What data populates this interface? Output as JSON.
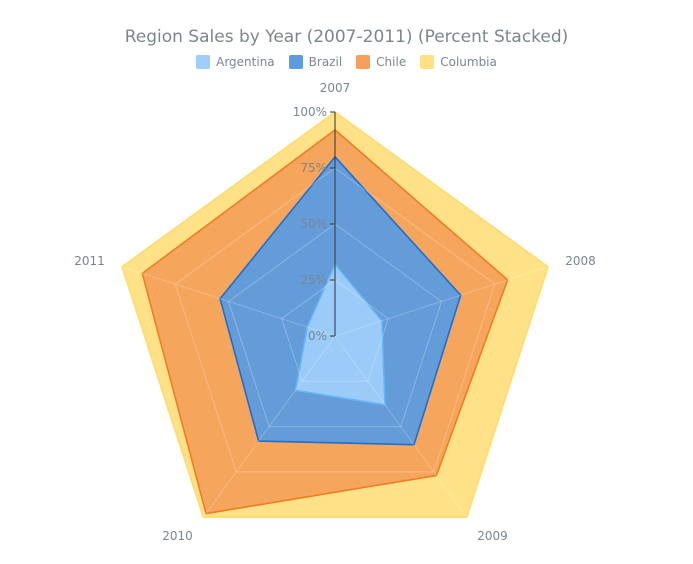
{
  "chart_data": {
    "type": "radar",
    "title": "Region Sales by Year (2007-2011) (Percent Stacked)",
    "stacked": "percent",
    "categories": [
      "2007",
      "2008",
      "2009",
      "2010",
      "2011"
    ],
    "radial_ticks": [
      "0%",
      "25%",
      "50%",
      "75%",
      "100%"
    ],
    "ylim": [
      0,
      100
    ],
    "legend_position": "top-center",
    "series": [
      {
        "name": "Argentina",
        "values": [
          32,
          22,
          38,
          30,
          15
        ],
        "color": "#9ecefa",
        "stroke": "#64b5f6"
      },
      {
        "name": "Brazil",
        "values": [
          48,
          37,
          22,
          28,
          47
        ],
        "color": "#5b9bde",
        "stroke": "#1e6fd0"
      },
      {
        "name": "Chile",
        "values": [
          12,
          22,
          17,
          40,
          42
        ],
        "color": "#f5a15b",
        "stroke": "#ef7d22"
      },
      {
        "name": "Columbia",
        "values": [
          8,
          19,
          23,
          2,
          11
        ],
        "color": "#ffe082",
        "stroke": "#ffd54f"
      }
    ]
  }
}
